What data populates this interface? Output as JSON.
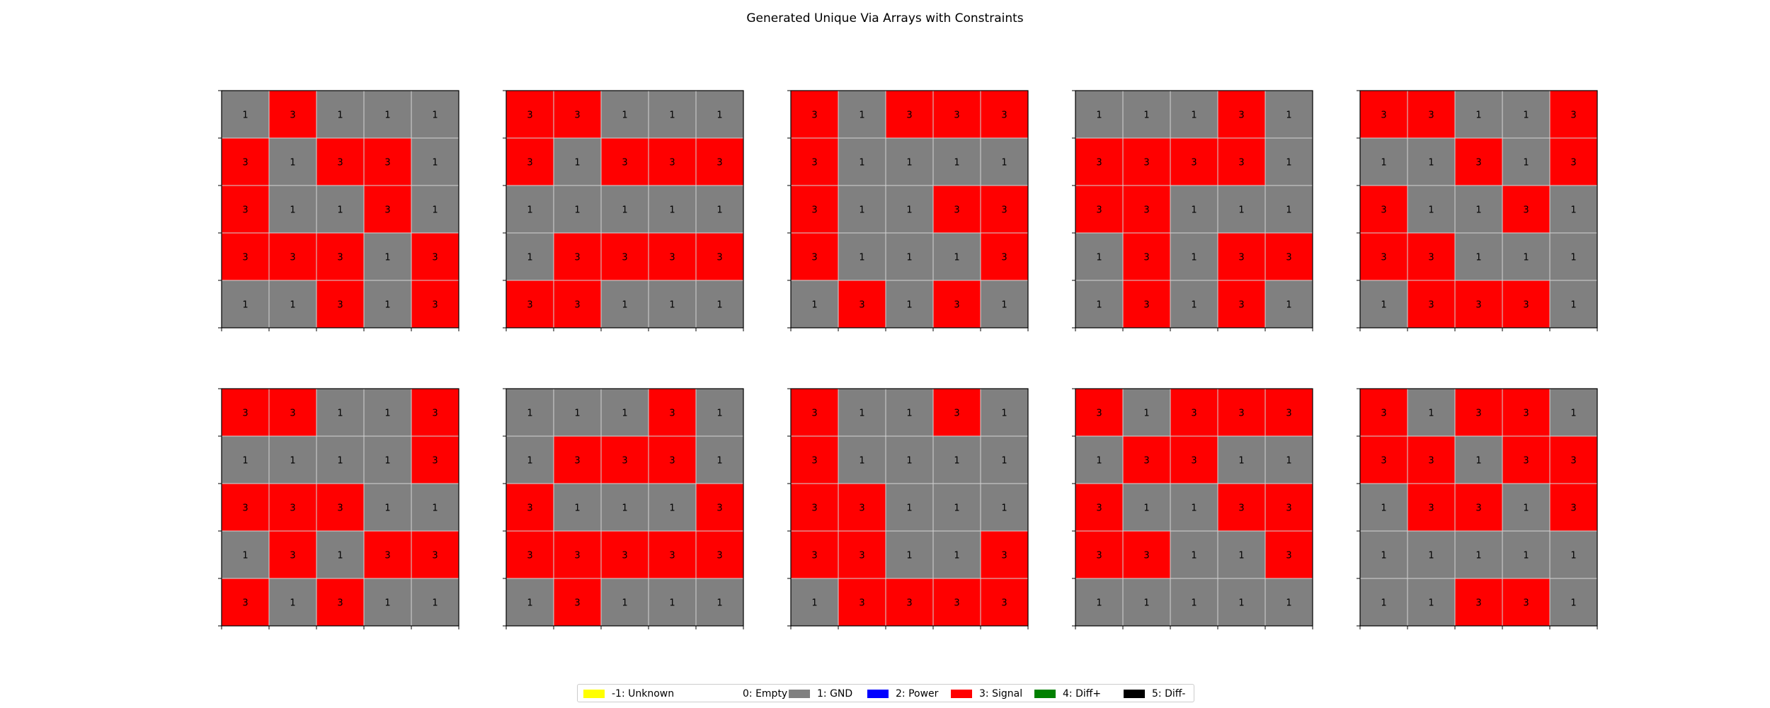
{
  "chart_data": {
    "type": "heatmap",
    "title": "Generated Unique Via Arrays with Constraints",
    "colors": {
      "-1": "#ffff00",
      "0": "#ffffff",
      "1": "#808080",
      "2": "#0000ff",
      "3": "#ff0000",
      "4": "#008000",
      "5": "#000000"
    },
    "grid_color": "#d3d3d3",
    "legend": {
      "placement": "bottom-center",
      "entries": [
        {
          "value": -1,
          "label": "-1: Unknown",
          "color": "#ffff00"
        },
        {
          "value": 0,
          "label": "0: Empty",
          "color": "#ffffff"
        },
        {
          "value": 1,
          "label": "1: GND",
          "color": "#808080"
        },
        {
          "value": 2,
          "label": "2: Power",
          "color": "#0000ff"
        },
        {
          "value": 3,
          "label": "3: Signal",
          "color": "#ff0000"
        },
        {
          "value": 4,
          "label": "4: Diff+",
          "color": "#008000"
        },
        {
          "value": 5,
          "label": "5: Diff-",
          "color": "#000000"
        }
      ]
    },
    "arrays": [
      [
        [
          1,
          3,
          1,
          1,
          1
        ],
        [
          3,
          1,
          3,
          3,
          1
        ],
        [
          3,
          1,
          1,
          3,
          1
        ],
        [
          3,
          3,
          3,
          1,
          3
        ],
        [
          1,
          1,
          3,
          1,
          3
        ]
      ],
      [
        [
          3,
          3,
          1,
          1,
          1
        ],
        [
          3,
          1,
          3,
          3,
          3
        ],
        [
          1,
          1,
          1,
          1,
          1
        ],
        [
          1,
          3,
          3,
          3,
          3
        ],
        [
          3,
          3,
          1,
          1,
          1
        ]
      ],
      [
        [
          3,
          1,
          3,
          3,
          3
        ],
        [
          3,
          1,
          1,
          1,
          1
        ],
        [
          3,
          1,
          1,
          3,
          3
        ],
        [
          3,
          1,
          1,
          1,
          3
        ],
        [
          1,
          3,
          1,
          3,
          1
        ]
      ],
      [
        [
          1,
          1,
          1,
          3,
          1
        ],
        [
          3,
          3,
          3,
          3,
          1
        ],
        [
          3,
          3,
          1,
          1,
          1
        ],
        [
          1,
          3,
          1,
          3,
          3
        ],
        [
          1,
          3,
          1,
          3,
          1
        ]
      ],
      [
        [
          3,
          3,
          1,
          1,
          3
        ],
        [
          1,
          1,
          3,
          1,
          3
        ],
        [
          3,
          1,
          1,
          3,
          1
        ],
        [
          3,
          3,
          1,
          1,
          1
        ],
        [
          1,
          3,
          3,
          3,
          1
        ]
      ],
      [
        [
          3,
          3,
          1,
          1,
          3
        ],
        [
          1,
          1,
          1,
          1,
          3
        ],
        [
          3,
          3,
          3,
          1,
          1
        ],
        [
          1,
          3,
          1,
          3,
          3
        ],
        [
          3,
          1,
          3,
          1,
          1
        ]
      ],
      [
        [
          1,
          1,
          1,
          3,
          1
        ],
        [
          1,
          3,
          3,
          3,
          1
        ],
        [
          3,
          1,
          1,
          1,
          3
        ],
        [
          3,
          3,
          3,
          3,
          3
        ],
        [
          1,
          3,
          1,
          1,
          1
        ]
      ],
      [
        [
          3,
          1,
          1,
          3,
          1
        ],
        [
          3,
          1,
          1,
          1,
          1
        ],
        [
          3,
          3,
          1,
          1,
          1
        ],
        [
          3,
          3,
          1,
          1,
          3
        ],
        [
          1,
          3,
          3,
          3,
          3
        ]
      ],
      [
        [
          3,
          1,
          3,
          3,
          3
        ],
        [
          1,
          3,
          3,
          1,
          1
        ],
        [
          3,
          1,
          1,
          3,
          3
        ],
        [
          3,
          3,
          1,
          1,
          3
        ],
        [
          1,
          1,
          1,
          1,
          1
        ]
      ],
      [
        [
          3,
          1,
          3,
          3,
          1
        ],
        [
          3,
          3,
          1,
          3,
          3
        ],
        [
          1,
          3,
          3,
          1,
          3
        ],
        [
          1,
          1,
          1,
          1,
          1
        ],
        [
          1,
          1,
          3,
          3,
          1
        ]
      ]
    ]
  }
}
